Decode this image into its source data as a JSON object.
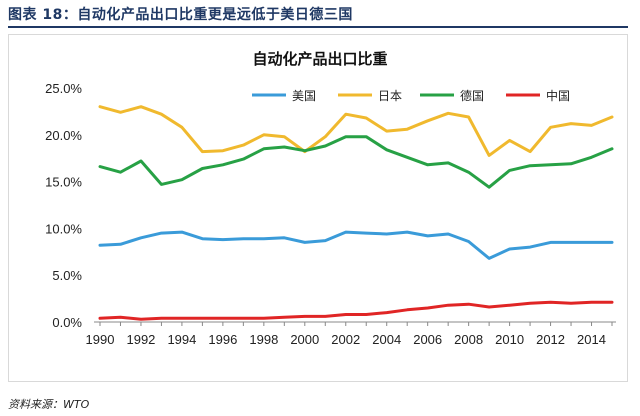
{
  "figure": {
    "caption": "图表 18：自动化产品出口比重更是远低于美日德三国",
    "source": "资料来源：WTO"
  },
  "chart_data": {
    "type": "line",
    "title": "自动化产品出口比重",
    "xlabel": "",
    "ylabel": "",
    "x": [
      1990,
      1991,
      1992,
      1993,
      1994,
      1995,
      1996,
      1997,
      1998,
      1999,
      2000,
      2001,
      2002,
      2003,
      2004,
      2005,
      2006,
      2007,
      2008,
      2009,
      2010,
      2011,
      2012,
      2013,
      2014,
      2015
    ],
    "x_ticks": [
      "1990",
      "1992",
      "1994",
      "1996",
      "1998",
      "2000",
      "2002",
      "2004",
      "2006",
      "2008",
      "2010",
      "2012",
      "2014"
    ],
    "y_ticks": [
      "0.0%",
      "5.0%",
      "10.0%",
      "15.0%",
      "20.0%",
      "25.0%"
    ],
    "ylim": [
      0,
      25
    ],
    "grid": false,
    "legend_position": "top",
    "series": [
      {
        "name": "美国",
        "color": "#3a9bd9",
        "values": [
          8.2,
          8.3,
          9.0,
          9.5,
          9.6,
          8.9,
          8.8,
          8.9,
          8.9,
          9.0,
          8.5,
          8.7,
          9.6,
          9.5,
          9.4,
          9.6,
          9.2,
          9.4,
          8.6,
          6.8,
          7.8,
          8.0,
          8.5,
          8.5,
          8.5,
          8.5
        ]
      },
      {
        "name": "日本",
        "color": "#f0b92e",
        "values": [
          23.0,
          22.4,
          23.0,
          22.2,
          20.8,
          18.2,
          18.3,
          18.9,
          20.0,
          19.8,
          18.2,
          19.8,
          22.2,
          21.8,
          20.4,
          20.6,
          21.5,
          22.3,
          21.9,
          17.8,
          19.4,
          18.2,
          20.8,
          21.2,
          21.0,
          21.9
        ]
      },
      {
        "name": "德国",
        "color": "#27a145",
        "values": [
          16.6,
          16.0,
          17.2,
          14.7,
          15.2,
          16.4,
          16.8,
          17.4,
          18.5,
          18.7,
          18.3,
          18.8,
          19.8,
          19.8,
          18.4,
          17.6,
          16.8,
          17.0,
          16.0,
          14.4,
          16.2,
          16.7,
          16.8,
          16.9,
          17.6,
          18.5
        ]
      },
      {
        "name": "中国",
        "color": "#e02525",
        "values": [
          0.4,
          0.5,
          0.3,
          0.4,
          0.4,
          0.4,
          0.4,
          0.4,
          0.4,
          0.5,
          0.6,
          0.6,
          0.8,
          0.8,
          1.0,
          1.3,
          1.5,
          1.8,
          1.9,
          1.6,
          1.8,
          2.0,
          2.1,
          2.0,
          2.1,
          2.1
        ]
      }
    ]
  }
}
